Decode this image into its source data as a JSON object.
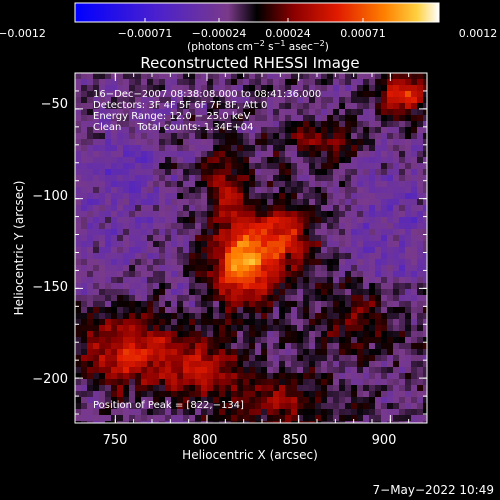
{
  "colorbar": {
    "ticks": [
      "−0.0012",
      "−0.00071",
      "−0.00024",
      "0.00024",
      "0.00071",
      "0.0012"
    ],
    "unit_prefix": "(photons cm",
    "unit_exp1": "−2",
    "unit_mid1": " s",
    "unit_exp2": "−1",
    "unit_mid2": " asec",
    "unit_exp3": "−2",
    "unit_suffix": ")"
  },
  "plot": {
    "title": "Reconstructed RHESSI Image",
    "xlabel": "Heliocentric X (arcsec)",
    "ylabel": "Heliocentric Y (arcsec)",
    "xticks": [
      "750",
      "800",
      "850",
      "900"
    ],
    "yticks": [
      "−50",
      "−100",
      "−150",
      "−200"
    ],
    "xtick_values": [
      750,
      800,
      850,
      900
    ],
    "ytick_values": [
      -50,
      -100,
      -150,
      -200
    ],
    "xlim": [
      728,
      920
    ],
    "ylim": [
      -225,
      -30
    ]
  },
  "annotations": {
    "line1": "16−Dec−2007 08:38:08.000 to 08:41:36.000",
    "line2": "Detectors: 3F 4F 5F 6F 7F 8F, Att 0",
    "line3": "Energy Range: 12.0 − 25.0 keV",
    "line4": "Clean     Total counts: 1.34E+04",
    "peak": "Position of Peak = [822,−134]"
  },
  "timestamp": "7−May−2022 10:49"
}
